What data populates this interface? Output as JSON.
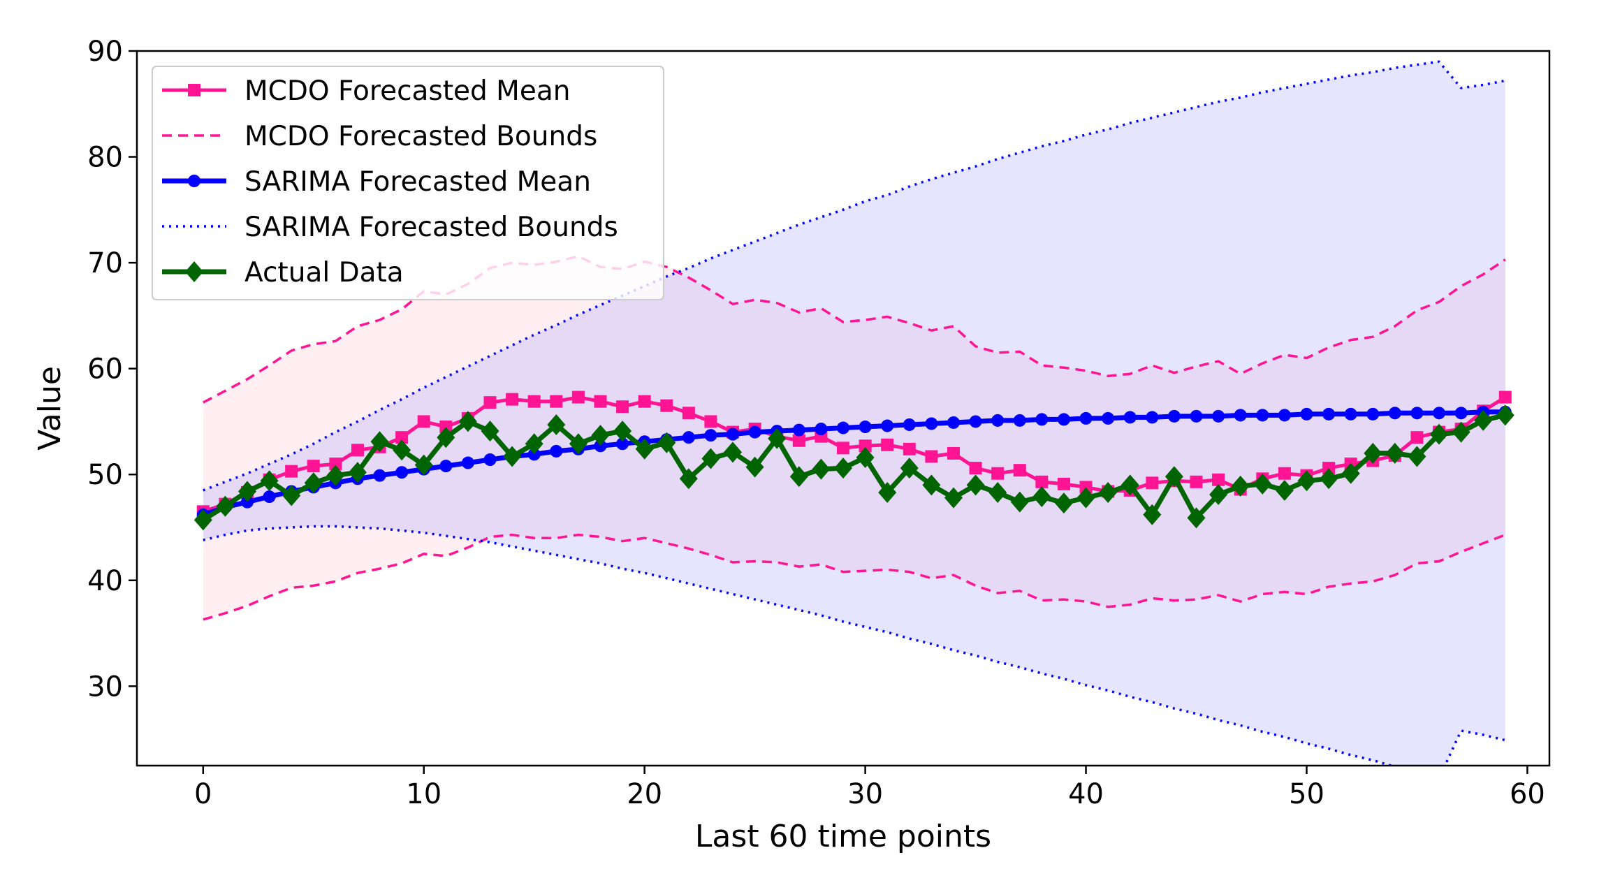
{
  "chart_data": {
    "type": "line",
    "title": "",
    "xlabel": "Last 60 time points",
    "ylabel": "Value",
    "xlim": [
      -3,
      61
    ],
    "ylim": [
      22.5,
      90
    ],
    "xticks": [
      0,
      10,
      20,
      30,
      40,
      50,
      60
    ],
    "yticks": [
      30,
      40,
      50,
      60,
      70,
      80,
      90
    ],
    "grid": false,
    "legend_position": "top-left",
    "colors": {
      "mcdo": "#ff1493",
      "mcdo_band": "#ffc0cb",
      "sarima": "#0000ff",
      "sarima_band": "#9999ff",
      "actual": "#006400"
    },
    "legend": [
      {
        "label": "MCDO Forecasted Mean",
        "key": "mcdo_mean"
      },
      {
        "label": "MCDO Forecasted Bounds",
        "key": "mcdo_bounds"
      },
      {
        "label": "SARIMA Forecasted Mean",
        "key": "sarima_mean"
      },
      {
        "label": "SARIMA Forecasted Bounds",
        "key": "sarima_bounds"
      },
      {
        "label": "Actual Data",
        "key": "actual"
      }
    ],
    "x": [
      0,
      1,
      2,
      3,
      4,
      5,
      6,
      7,
      8,
      9,
      10,
      11,
      12,
      13,
      14,
      15,
      16,
      17,
      18,
      19,
      20,
      21,
      22,
      23,
      24,
      25,
      26,
      27,
      28,
      29,
      30,
      31,
      32,
      33,
      34,
      35,
      36,
      37,
      38,
      39,
      40,
      41,
      42,
      43,
      44,
      45,
      46,
      47,
      48,
      49,
      50,
      51,
      52,
      53,
      54,
      55,
      56,
      57,
      58,
      59
    ],
    "series": [
      {
        "name": "MCDO Forecasted Mean",
        "style": "solid-square",
        "values": [
          46.5,
          47.2,
          48.3,
          49.5,
          50.3,
          50.8,
          51.0,
          52.3,
          52.6,
          53.5,
          55.0,
          54.5,
          55.3,
          56.8,
          57.1,
          56.9,
          56.9,
          57.3,
          56.9,
          56.4,
          56.9,
          56.5,
          55.8,
          55.0,
          54.0,
          54.3,
          53.6,
          53.2,
          53.6,
          52.5,
          52.7,
          52.8,
          52.4,
          51.7,
          52.0,
          50.6,
          50.1,
          50.4,
          49.3,
          49.1,
          48.8,
          48.4,
          48.5,
          49.2,
          49.4,
          49.3,
          49.5,
          48.6,
          49.6,
          50.1,
          49.9,
          50.6,
          51.0,
          51.3,
          51.8,
          53.5,
          54.0,
          54.3,
          56.0,
          57.3
        ]
      },
      {
        "name": "MCDO Forecasted Bounds (upper)",
        "style": "dashed",
        "values": [
          56.8,
          57.9,
          59.0,
          60.3,
          61.7,
          62.3,
          62.6,
          64.0,
          64.6,
          65.6,
          67.3,
          67.0,
          68.0,
          69.5,
          70.0,
          69.8,
          70.1,
          70.6,
          69.6,
          69.4,
          70.1,
          69.6,
          68.6,
          67.4,
          66.1,
          66.5,
          66.2,
          65.3,
          65.7,
          64.4,
          64.6,
          64.9,
          64.3,
          63.6,
          64.0,
          62.1,
          61.5,
          61.6,
          60.3,
          60.1,
          59.8,
          59.3,
          59.5,
          60.3,
          59.6,
          60.2,
          60.7,
          59.5,
          60.5,
          61.3,
          61.0,
          62.0,
          62.7,
          63.0,
          64.0,
          65.5,
          66.3,
          67.8,
          68.9,
          70.3
        ]
      },
      {
        "name": "MCDO Forecasted Bounds (lower)",
        "style": "dashed",
        "values": [
          36.3,
          36.9,
          37.6,
          38.5,
          39.3,
          39.5,
          39.9,
          40.7,
          41.1,
          41.6,
          42.5,
          42.3,
          43.1,
          44.1,
          44.3,
          44.0,
          44.0,
          44.3,
          44.1,
          43.7,
          44.0,
          43.5,
          43.0,
          42.4,
          41.7,
          41.8,
          41.7,
          41.3,
          41.5,
          40.8,
          40.9,
          41.0,
          40.8,
          40.2,
          40.5,
          39.5,
          38.8,
          39.0,
          38.1,
          38.2,
          38.0,
          37.5,
          37.7,
          38.3,
          38.1,
          38.2,
          38.6,
          38.0,
          38.7,
          38.9,
          38.7,
          39.4,
          39.7,
          39.9,
          40.5,
          41.6,
          41.8,
          42.7,
          43.5,
          44.3
        ]
      },
      {
        "name": "SARIMA Forecasted Mean",
        "style": "solid-circle",
        "values": [
          46.2,
          46.9,
          47.4,
          47.9,
          48.4,
          48.8,
          49.2,
          49.6,
          49.9,
          50.2,
          50.5,
          50.8,
          51.1,
          51.4,
          51.7,
          51.9,
          52.2,
          52.4,
          52.7,
          52.9,
          53.1,
          53.3,
          53.5,
          53.7,
          53.8,
          54.0,
          54.1,
          54.2,
          54.3,
          54.4,
          54.5,
          54.6,
          54.7,
          54.8,
          54.9,
          55.0,
          55.1,
          55.1,
          55.2,
          55.2,
          55.3,
          55.3,
          55.4,
          55.4,
          55.5,
          55.5,
          55.5,
          55.6,
          55.6,
          55.6,
          55.7,
          55.7,
          55.7,
          55.7,
          55.8,
          55.8,
          55.8,
          55.8,
          55.9,
          55.9
        ]
      },
      {
        "name": "SARIMA Forecasted Bounds (upper)",
        "style": "dotted",
        "values": [
          48.5,
          49.3,
          50.1,
          51.0,
          51.9,
          52.9,
          54.0,
          55.0,
          56.1,
          57.1,
          58.2,
          59.2,
          60.2,
          61.2,
          62.2,
          63.2,
          64.1,
          65.1,
          66.0,
          66.9,
          67.8,
          68.7,
          69.5,
          70.4,
          71.2,
          72.0,
          72.8,
          73.6,
          74.3,
          75.0,
          75.8,
          76.4,
          77.2,
          77.9,
          78.5,
          79.1,
          79.8,
          80.4,
          81.0,
          81.5,
          82.1,
          82.6,
          83.2,
          83.7,
          84.2,
          84.7,
          85.2,
          85.6,
          86.1,
          86.5,
          86.9,
          87.3,
          87.7,
          88.0,
          88.4,
          88.7,
          89.0,
          86.5,
          86.8,
          87.2
        ]
      },
      {
        "name": "SARIMA Forecasted Bounds (lower)",
        "style": "dotted",
        "values": [
          43.8,
          44.3,
          44.7,
          44.9,
          45.0,
          45.1,
          45.1,
          45.0,
          44.9,
          44.7,
          44.5,
          44.2,
          43.9,
          43.6,
          43.2,
          42.8,
          42.4,
          42.0,
          41.6,
          41.1,
          40.7,
          40.2,
          39.7,
          39.2,
          38.7,
          38.2,
          37.7,
          37.2,
          36.7,
          36.1,
          35.6,
          35.1,
          34.5,
          34.0,
          33.4,
          32.9,
          32.3,
          31.8,
          31.2,
          30.7,
          30.1,
          29.6,
          29.0,
          28.5,
          27.9,
          27.4,
          26.8,
          26.3,
          25.7,
          25.2,
          24.6,
          24.1,
          23.5,
          23.0,
          22.4,
          21.9,
          21.3,
          25.8,
          25.4,
          24.9
        ]
      },
      {
        "name": "Actual Data",
        "style": "solid-diamond",
        "values": [
          45.7,
          47.0,
          48.4,
          49.4,
          48.0,
          49.2,
          49.9,
          50.2,
          53.1,
          52.3,
          50.9,
          53.5,
          55.0,
          54.1,
          51.7,
          52.9,
          54.7,
          52.9,
          53.7,
          54.1,
          52.4,
          53.0,
          49.6,
          51.5,
          52.1,
          50.7,
          53.4,
          49.8,
          50.5,
          50.6,
          51.6,
          48.3,
          50.6,
          49.0,
          47.8,
          49.0,
          48.3,
          47.4,
          47.9,
          47.3,
          47.8,
          48.3,
          49.0,
          46.2,
          49.8,
          45.9,
          48.1,
          48.9,
          49.1,
          48.5,
          49.4,
          49.6,
          50.1,
          52.0,
          52.0,
          51.7,
          53.8,
          54.0,
          55.1,
          55.6
        ]
      }
    ]
  }
}
